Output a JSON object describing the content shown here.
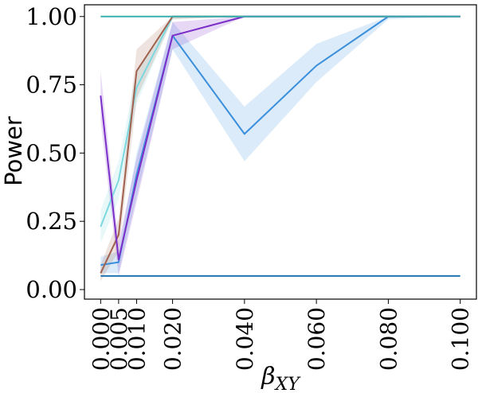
{
  "chart_data": {
    "type": "line",
    "xlabel": "β",
    "xlabel_subscript": "XY",
    "ylabel": "Power",
    "xlim": [
      -0.0045,
      0.1045
    ],
    "ylim": [
      -0.035,
      1.043
    ],
    "x_ticks": [
      0.0,
      0.005,
      0.01,
      0.02,
      0.04,
      0.06,
      0.08,
      0.1
    ],
    "x_tick_labels": [
      "0.000",
      "0.005",
      "0.010",
      "0.020",
      "0.040",
      "0.060",
      "0.080",
      "0.100"
    ],
    "y_ticks": [
      0.0,
      0.25,
      0.5,
      0.75,
      1.0
    ],
    "y_tick_labels": [
      "0.00",
      "0.25",
      "0.50",
      "0.75",
      "1.00"
    ],
    "grid": false,
    "legend": "none",
    "series": [
      {
        "color": "#1f77b4",
        "x": [
          0.0,
          0.005,
          0.01,
          0.02,
          0.04,
          0.06,
          0.08,
          0.1
        ],
        "values": [
          0.05,
          0.05,
          0.05,
          0.05,
          0.05,
          0.05,
          0.05,
          0.05
        ]
      },
      {
        "color": "#3a8fdc",
        "x": [
          0.0,
          0.005,
          0.01,
          0.02,
          0.04,
          0.06,
          0.08,
          0.1
        ],
        "values": [
          0.09,
          0.1,
          0.42,
          0.93,
          0.57,
          0.82,
          1.0,
          1.0
        ],
        "lower": [
          0.06,
          0.06,
          0.34,
          0.88,
          0.47,
          0.76,
          0.99,
          1.0
        ],
        "upper": [
          0.12,
          0.14,
          0.5,
          0.98,
          0.67,
          0.9,
          1.0,
          1.0
        ]
      },
      {
        "color": "#7dd8e0",
        "x": [
          0.0,
          0.005,
          0.01,
          0.02,
          0.04,
          0.06,
          0.08,
          0.1
        ],
        "values": [
          0.23,
          0.4,
          0.74,
          1.0,
          1.0,
          1.0,
          1.0,
          1.0
        ],
        "lower": [
          0.17,
          0.33,
          0.68,
          0.99,
          1.0,
          1.0,
          1.0,
          1.0
        ],
        "upper": [
          0.29,
          0.47,
          0.8,
          1.0,
          1.0,
          1.0,
          1.0,
          1.0
        ]
      },
      {
        "color": "#a0624f",
        "x": [
          0.0,
          0.005,
          0.01,
          0.02,
          0.04,
          0.06,
          0.08,
          0.1
        ],
        "values": [
          0.06,
          0.2,
          0.8,
          1.0,
          1.0,
          1.0,
          1.0,
          1.0
        ],
        "lower": [
          0.03,
          0.14,
          0.7,
          0.99,
          1.0,
          1.0,
          1.0,
          1.0
        ],
        "upper": [
          0.09,
          0.26,
          0.88,
          1.0,
          1.0,
          1.0,
          1.0,
          1.0
        ]
      },
      {
        "color": "#7b2fc8",
        "x": [
          0.0,
          0.005,
          0.01,
          0.02,
          0.04,
          0.06,
          0.08,
          0.1
        ],
        "values": [
          0.71,
          0.11,
          0.4,
          0.93,
          1.0,
          1.0,
          1.0,
          1.0
        ],
        "lower": [
          0.62,
          0.05,
          0.32,
          0.88,
          1.0,
          1.0,
          1.0,
          1.0
        ],
        "upper": [
          0.8,
          0.17,
          0.48,
          0.98,
          1.0,
          1.0,
          1.0,
          1.0
        ]
      },
      {
        "color": "#3ab0ae",
        "x": [
          0.0,
          0.005,
          0.01,
          0.02,
          0.04,
          0.06,
          0.08,
          0.1
        ],
        "values": [
          1.0,
          1.0,
          1.0,
          1.0,
          1.0,
          1.0,
          1.0,
          1.0
        ]
      }
    ]
  }
}
